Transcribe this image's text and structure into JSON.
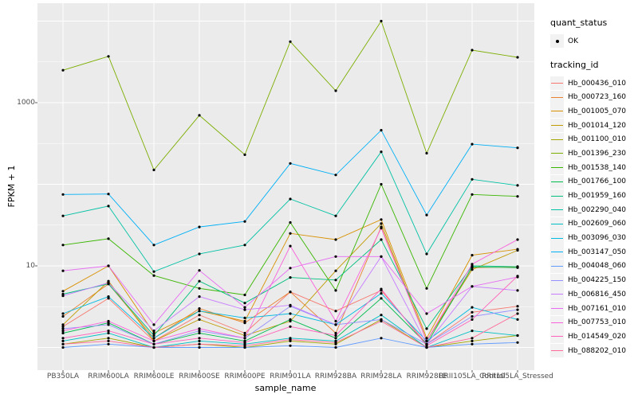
{
  "figure": {
    "panel_bg": "#EBEBEB",
    "grid_color": "#FFFFFF",
    "point_color": "#000000",
    "tick_color": "#333333",
    "tick_text_color": "#4D4D4D"
  },
  "y_axis": {
    "title": "FPKM + 1",
    "tick_labels": [
      "1000",
      "10"
    ],
    "tick_values": [
      1000,
      10
    ]
  },
  "x_axis": {
    "title": "sample_name"
  },
  "legend": {
    "quant_status_title": "quant_status",
    "quant_status_items": [
      {
        "label": "OK",
        "marker": "point"
      }
    ],
    "tracking_title": "tracking_id"
  },
  "chart_data": {
    "type": "line",
    "title": "",
    "xlabel": "sample_name",
    "ylabel": "FPKM + 1",
    "y_scale": "log10",
    "ylim": [
      0.55,
      16500
    ],
    "y_breaks": [
      10,
      1000
    ],
    "grid": true,
    "legend_position": "right",
    "point_marker": "black-dot",
    "categories": [
      "PB350LA",
      "RRIM600LA",
      "RRIM600LE",
      "RRIM600SE",
      "RRIM600PE",
      "RRIM901LA",
      "RRIM928BA",
      "RRIM928LA",
      "RRIM928LE",
      "RRII105LA_Control",
      "RRII105LA_Stressed"
    ],
    "series": [
      {
        "name": "Hb_000436_010",
        "color": "#F8766D",
        "values": [
          1.8,
          4.0,
          1.2,
          2.5,
          1.5,
          4.8,
          2.8,
          5.0,
          1.1,
          2.7,
          3.2
        ]
      },
      {
        "name": "Hb_000723_160",
        "color": "#EA8331",
        "values": [
          2.4,
          6.0,
          1.3,
          3.0,
          2.0,
          4.8,
          1.5,
          30,
          1.2,
          9.5,
          9.7
        ]
      },
      {
        "name": "Hb_001005_070",
        "color": "#D89000",
        "values": [
          4.9,
          10,
          1.5,
          2.8,
          2.1,
          25,
          21,
          37,
          1.3,
          13.5,
          16
        ]
      },
      {
        "name": "Hb_001014_120",
        "color": "#C09B00",
        "values": [
          1.9,
          6.5,
          1.2,
          2.2,
          1.4,
          2.1,
          8.7,
          33,
          1.2,
          9.0,
          15.5
        ]
      },
      {
        "name": "Hb_001100_010",
        "color": "#A3A500",
        "values": [
          1.1,
          1.3,
          1.0,
          1.1,
          1.0,
          1.2,
          1.1,
          2.2,
          1.0,
          1.2,
          1.4
        ]
      },
      {
        "name": "Hb_001396_230",
        "color": "#7CAE00",
        "values": [
          2500,
          3700,
          150,
          700,
          230,
          5600,
          1400,
          10000,
          240,
          4400,
          3600
        ]
      },
      {
        "name": "Hb_001538_140",
        "color": "#39B600",
        "values": [
          18,
          21.5,
          7.6,
          5.3,
          4.4,
          34,
          5.0,
          100,
          5.3,
          75,
          71
        ]
      },
      {
        "name": "Hb_001766_100",
        "color": "#00BB4E",
        "values": [
          1.5,
          2.0,
          1.1,
          1.5,
          1.2,
          2.2,
          1.3,
          4.0,
          1.1,
          9.7,
          9.5
        ]
      },
      {
        "name": "Hb_001959_160",
        "color": "#00BF7D",
        "values": [
          4.5,
          6.0,
          1.4,
          6.5,
          3.5,
          7.2,
          6.7,
          21,
          1.7,
          10,
          9.8
        ]
      },
      {
        "name": "Hb_002290_040",
        "color": "#00C1A3",
        "values": [
          41,
          54,
          8.5,
          14,
          18,
          66,
          41,
          250,
          14,
          115,
          97
        ]
      },
      {
        "name": "Hb_002609_060",
        "color": "#00BFC4",
        "values": [
          1.2,
          1.5,
          1.0,
          1.2,
          1.1,
          1.3,
          1.2,
          2.5,
          1.0,
          1.6,
          1.4
        ]
      },
      {
        "name": "Hb_003096_030",
        "color": "#00BAE0",
        "values": [
          2.6,
          4.2,
          1.3,
          2.8,
          2.3,
          2.6,
          1.9,
          4.6,
          1.2,
          3.1,
          2.2
        ]
      },
      {
        "name": "Hb_003147_050",
        "color": "#00B0F6",
        "values": [
          75,
          76,
          18,
          30,
          35,
          180,
          130,
          460,
          42,
          310,
          280
        ]
      },
      {
        "name": "Hb_004048_060",
        "color": "#619CFF",
        "values": [
          1.0,
          1.1,
          1.0,
          1.0,
          1.0,
          1.05,
          1.0,
          1.3,
          1.0,
          1.1,
          1.15
        ]
      },
      {
        "name": "Hb_004225_150",
        "color": "#9590FF",
        "values": [
          1.7,
          1.9,
          1.1,
          1.6,
          1.3,
          3.2,
          1.9,
          2.2,
          1.1,
          2.4,
          2.9
        ]
      },
      {
        "name": "Hb_006816_450",
        "color": "#C77CFF",
        "values": [
          4.3,
          6.2,
          1.6,
          4.2,
          2.9,
          3.3,
          1.9,
          13,
          1.1,
          5.6,
          5.0
        ]
      },
      {
        "name": "Hb_007161_010",
        "color": "#E76BF3",
        "values": [
          8.7,
          10,
          1.9,
          8.8,
          3.1,
          9.4,
          13,
          13,
          2.6,
          5.6,
          7.3
        ]
      },
      {
        "name": "Hb_007753_010",
        "color": "#FA62DB",
        "values": [
          1.6,
          2.1,
          1.2,
          1.7,
          1.3,
          17.5,
          2.1,
          29,
          1.2,
          10.5,
          21
        ]
      },
      {
        "name": "Hb_014549_020",
        "color": "#FF62BC",
        "values": [
          1.3,
          1.6,
          1.1,
          1.3,
          1.15,
          1.8,
          1.4,
          5.2,
          1.05,
          2.2,
          7.5
        ]
      },
      {
        "name": "Hb_088202_010",
        "color": "#FF6A98",
        "values": [
          1.1,
          1.2,
          1.0,
          1.1,
          1.05,
          1.25,
          1.15,
          2.1,
          1.0,
          1.3,
          2.6
        ]
      }
    ]
  }
}
